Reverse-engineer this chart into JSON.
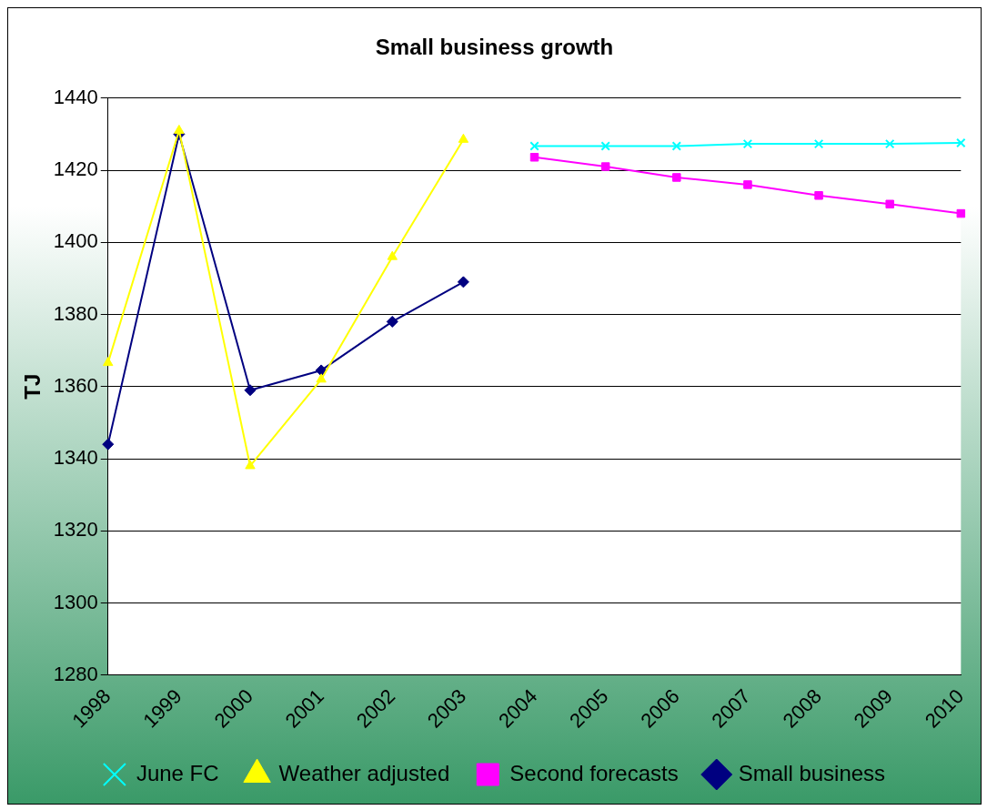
{
  "chart_data": {
    "type": "line",
    "title": "Small business growth",
    "ylabel": "TJ",
    "categories": [
      "1998",
      "1999",
      "2000",
      "2001",
      "2002",
      "2003",
      "2004",
      "2005",
      "2006",
      "2007",
      "2008",
      "2009",
      "2010"
    ],
    "ylim": [
      1280,
      1440
    ],
    "yticks": [
      1280,
      1300,
      1320,
      1340,
      1360,
      1380,
      1400,
      1420,
      1440
    ],
    "grid": "y",
    "legend": "bottom",
    "series": [
      {
        "name": "Small business",
        "color": "#000080",
        "marker": "diamond",
        "values": [
          1344,
          1430,
          1359,
          1364.5,
          1378,
          1389,
          null,
          null,
          null,
          null,
          null,
          null,
          null
        ]
      },
      {
        "name": "Second forecasts",
        "color": "#ff00ff",
        "marker": "square",
        "values": [
          null,
          null,
          null,
          null,
          null,
          null,
          1423.6,
          1421,
          1418,
          1416,
          1413,
          1410.6,
          1408
        ]
      },
      {
        "name": "Weather adjusted",
        "color": "#ffff00",
        "marker": "triangle",
        "values": [
          1366.6,
          1431,
          1338,
          1362,
          1396,
          1428.5,
          null,
          null,
          null,
          null,
          null,
          null,
          null
        ]
      },
      {
        "name": "June FC",
        "color": "#00ffff",
        "marker": "cross",
        "values": [
          null,
          null,
          null,
          null,
          null,
          null,
          1426.7,
          1426.7,
          1426.7,
          1427.3,
          1427.3,
          1427.3,
          1427.6
        ]
      }
    ]
  }
}
